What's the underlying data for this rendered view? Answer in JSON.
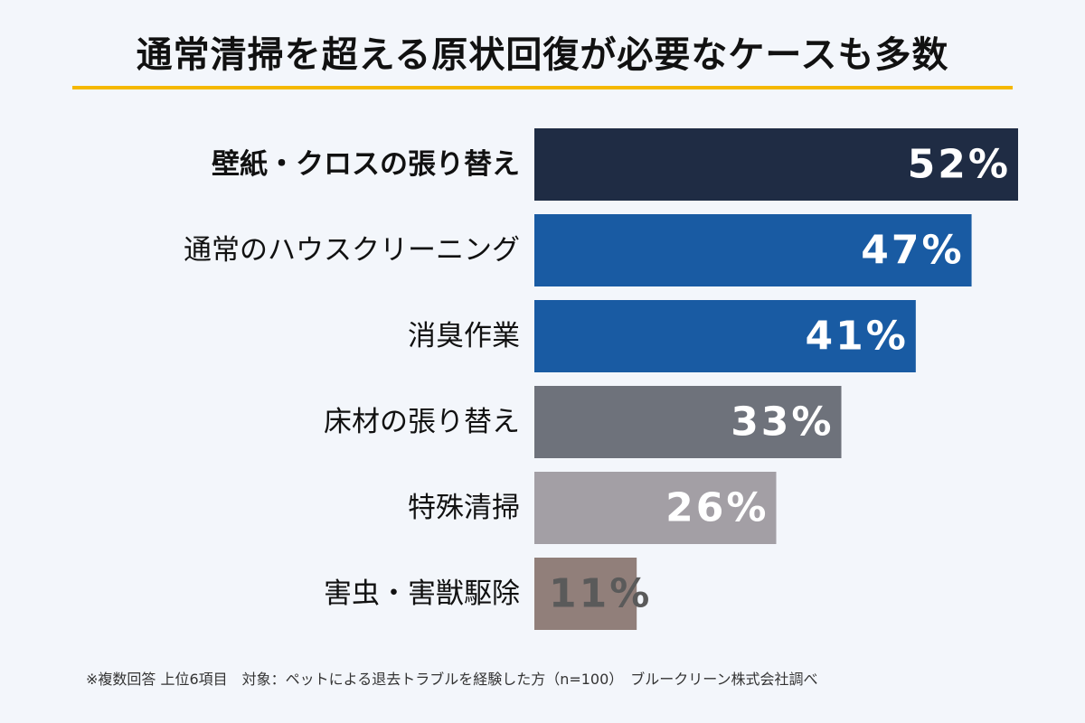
{
  "title": "通常清掃を超える原状回復が必要なケースも多数",
  "colors": {
    "background": "#f3f6fb",
    "title_rule": "#f5b800"
  },
  "chart_data": {
    "type": "bar",
    "orientation": "horizontal",
    "title": "通常清掃を超える原状回復が必要なケースも多数",
    "categories": [
      "壁紙・クロスの張り替え",
      "通常のハウスクリーニング",
      "消臭作業",
      "床材の張り替え",
      "特殊清掃",
      "害虫・害獣駆除"
    ],
    "values": [
      52,
      47,
      41,
      33,
      26,
      11
    ],
    "value_labels": [
      "52%",
      "47%",
      "41%",
      "33%",
      "26%",
      "11%"
    ],
    "bar_colors": [
      "#1f2c44",
      "#195ba3",
      "#195ba3",
      "#6e727b",
      "#a39fa5",
      "#917f7a"
    ],
    "highlight_index": 0,
    "xlim": [
      0,
      52
    ],
    "grid": false
  },
  "footnote": "※複数回答 上位6項目　対象：ペットによる退去トラブルを経験した方（n=100）　ブルークリーン株式会社調べ"
}
